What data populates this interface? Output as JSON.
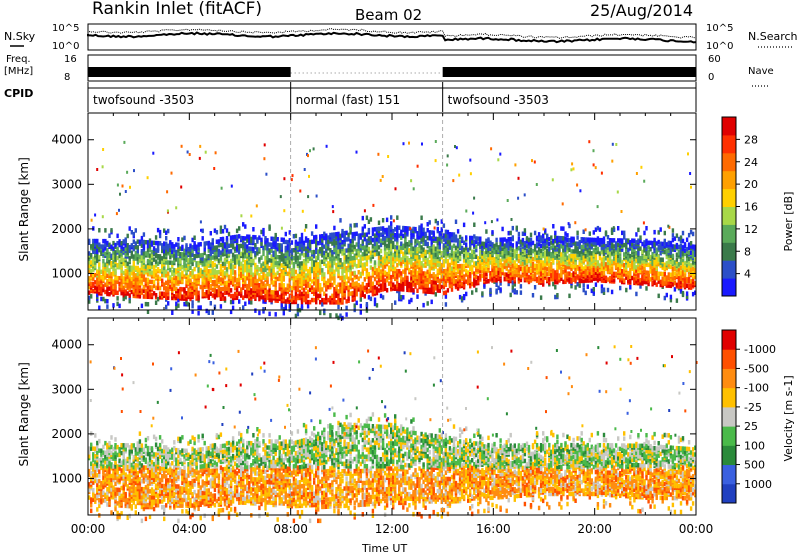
{
  "header": {
    "station": "Rankin Inlet (fitACF)",
    "beam": "Beam 02",
    "date": "25/Aug/2014"
  },
  "top_panels": {
    "nsky_label": "N.Sky",
    "nsearch_label": "N.Search",
    "noise_ticks": [
      "10^5",
      "10^0"
    ],
    "freq_label_1": "Freq.",
    "freq_label_2": "[MHz]",
    "freq_ticks": [
      "16",
      "8"
    ],
    "nave_label": "Nave",
    "nave_ticks": [
      "60",
      "0"
    ],
    "cpid_label": "CPID",
    "cpid_segments": [
      {
        "label": "twofsound -3503",
        "start_hour": 0,
        "end_hour": 8
      },
      {
        "label": "normal (fast) 151",
        "start_hour": 8,
        "end_hour": 14
      },
      {
        "label": "twofsound -3503",
        "start_hour": 14,
        "end_hour": 24
      }
    ]
  },
  "x_axis": {
    "label": "Time UT",
    "ticks": [
      "00:00",
      "04:00",
      "08:00",
      "12:00",
      "16:00",
      "20:00",
      "00:00"
    ]
  },
  "chart_data": [
    {
      "type": "heatmap",
      "panel": "power",
      "ylabel": "Slant Range [km]",
      "yticks": [
        1000,
        2000,
        3000,
        4000
      ],
      "ylim": [
        180,
        4600
      ],
      "xlim_hours": [
        0,
        24
      ],
      "colorbar_label": "Power [dB]",
      "colorbar_ticks": [
        "4",
        "8",
        "12",
        "16",
        "20",
        "24",
        "28"
      ],
      "colors": [
        "#1a1aff",
        "#2c4fc8",
        "#3a7a4a",
        "#5aaa5a",
        "#a8d848",
        "#ffd000",
        "#ffa000",
        "#ff6a00",
        "#ff3000",
        "#e00000"
      ],
      "band": [
        {
          "t": 0,
          "lo": 600,
          "hi": 1800
        },
        {
          "t": 2,
          "lo": 500,
          "hi": 1800
        },
        {
          "t": 4,
          "lo": 450,
          "hi": 1700
        },
        {
          "t": 6,
          "lo": 500,
          "hi": 1900
        },
        {
          "t": 8,
          "lo": 400,
          "hi": 1800
        },
        {
          "t": 10,
          "lo": 350,
          "hi": 2000
        },
        {
          "t": 12,
          "lo": 700,
          "hi": 2100
        },
        {
          "t": 14,
          "lo": 600,
          "hi": 2000
        },
        {
          "t": 16,
          "lo": 900,
          "hi": 1800
        },
        {
          "t": 18,
          "lo": 800,
          "hi": 1900
        },
        {
          "t": 20,
          "lo": 900,
          "hi": 1800
        },
        {
          "t": 22,
          "lo": 800,
          "hi": 1800
        },
        {
          "t": 24,
          "lo": 700,
          "hi": 1700
        }
      ]
    },
    {
      "type": "heatmap",
      "panel": "velocity",
      "ylabel": "Slant Range [km]",
      "yticks": [
        1000,
        2000,
        3000,
        4000
      ],
      "ylim": [
        180,
        4600
      ],
      "xlim_hours": [
        0,
        24
      ],
      "colorbar_label": "Velocity [m s-1]",
      "colorbar_ticks": [
        "1000",
        "500",
        "100",
        "25",
        "-25",
        "-100",
        "-500",
        "-1000"
      ],
      "colors": [
        "#2040c0",
        "#3a60e0",
        "#2a8a3a",
        "#4aba4a",
        "#c8c8c4",
        "#ffc000",
        "#ff8c10",
        "#ff5000",
        "#e00000"
      ],
      "band": [
        {
          "t": 0,
          "lo": 500,
          "hi": 1800
        },
        {
          "t": 2,
          "lo": 400,
          "hi": 1800
        },
        {
          "t": 4,
          "lo": 400,
          "hi": 1700
        },
        {
          "t": 6,
          "lo": 500,
          "hi": 1900
        },
        {
          "t": 8,
          "lo": 400,
          "hi": 1900
        },
        {
          "t": 10,
          "lo": 400,
          "hi": 2300
        },
        {
          "t": 12,
          "lo": 500,
          "hi": 2200
        },
        {
          "t": 14,
          "lo": 500,
          "hi": 2000
        },
        {
          "t": 16,
          "lo": 600,
          "hi": 1800
        },
        {
          "t": 18,
          "lo": 700,
          "hi": 1800
        },
        {
          "t": 20,
          "lo": 700,
          "hi": 1800
        },
        {
          "t": 22,
          "lo": 600,
          "hi": 1800
        },
        {
          "t": 24,
          "lo": 600,
          "hi": 1700
        }
      ]
    }
  ]
}
